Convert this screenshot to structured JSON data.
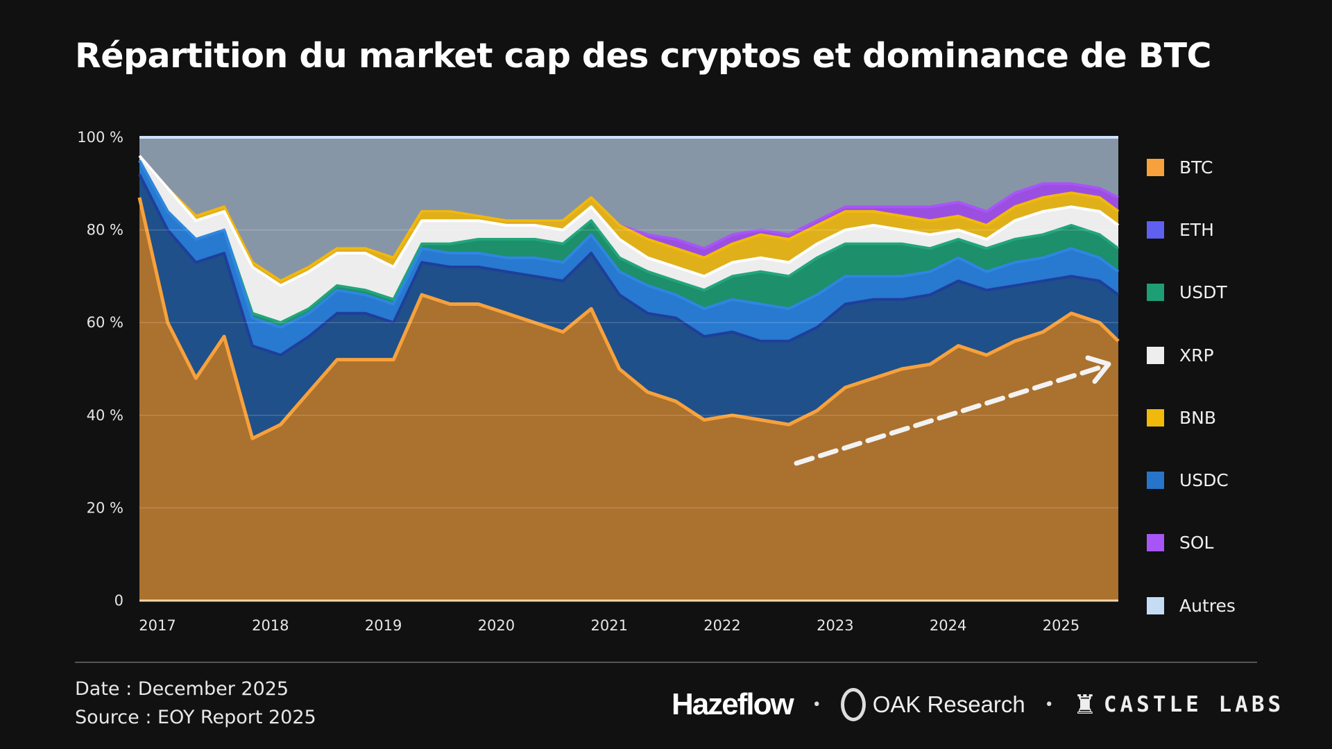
{
  "title": "Répartition du market cap des cryptos et dominance de BTC",
  "footer": {
    "date": "Date : December 2025",
    "source": "Source : EOY Report 2025",
    "logos": [
      "Hazeflow",
      "OAK Research",
      "CASTLE LABS"
    ]
  },
  "chart_data": {
    "type": "area",
    "stacked": true,
    "title": "",
    "xlabel": "",
    "ylabel": "",
    "ylim": [
      0,
      100
    ],
    "grid": true,
    "legend_position": "right",
    "y_tick_labels": [
      "0",
      "20 %",
      "40 %",
      "60 %",
      "80 %",
      "100 %"
    ],
    "x_tick_labels": [
      "2017",
      "2018",
      "2019",
      "2020",
      "2021",
      "2022",
      "2023",
      "2024",
      "2025"
    ],
    "x": [
      "2017-01",
      "2017-04",
      "2017-07",
      "2017-10",
      "2018-01",
      "2018-04",
      "2018-07",
      "2018-10",
      "2019-01",
      "2019-04",
      "2019-07",
      "2019-10",
      "2020-01",
      "2020-04",
      "2020-07",
      "2020-10",
      "2021-01",
      "2021-04",
      "2021-07",
      "2021-10",
      "2022-01",
      "2022-04",
      "2022-07",
      "2022-10",
      "2023-01",
      "2023-04",
      "2023-07",
      "2023-10",
      "2024-01",
      "2024-04",
      "2024-07",
      "2024-10",
      "2025-01",
      "2025-04",
      "2025-07",
      "2025-09"
    ],
    "series": [
      {
        "name": "BTC",
        "color": "#f7a13c",
        "values": [
          87,
          60,
          48,
          57,
          35,
          38,
          45,
          52,
          52,
          52,
          66,
          64,
          64,
          62,
          60,
          58,
          63,
          50,
          45,
          43,
          39,
          40,
          39,
          38,
          41,
          46,
          48,
          50,
          51,
          55,
          53,
          56,
          58,
          62,
          60,
          56
        ]
      },
      {
        "name": "ETH",
        "color": "#5f5ff0",
        "values": [
          5,
          20,
          25,
          18,
          20,
          15,
          12,
          10,
          10,
          8,
          7,
          8,
          8,
          9,
          10,
          11,
          12,
          16,
          17,
          18,
          18,
          18,
          17,
          18,
          18,
          18,
          17,
          15,
          15,
          14,
          14,
          12,
          11,
          8,
          9,
          10
        ]
      },
      {
        "name": "USDT",
        "color": "#1e9e75",
        "values": [
          0,
          0,
          0,
          0,
          1,
          1,
          1,
          1,
          1,
          1,
          1,
          2,
          3,
          4,
          4,
          4,
          3,
          3,
          3,
          3,
          4,
          5,
          7,
          7,
          8,
          7,
          7,
          7,
          5,
          4,
          5,
          5,
          5,
          5,
          5,
          5
        ]
      },
      {
        "name": "XRP",
        "color": "#eeeeee",
        "values": [
          1,
          5,
          4,
          4,
          10,
          8,
          8,
          7,
          8,
          7,
          5,
          5,
          4,
          3,
          3,
          3,
          3,
          4,
          3,
          3,
          3,
          3,
          3,
          3,
          3,
          3,
          4,
          3,
          3,
          2,
          2,
          4,
          5,
          4,
          5,
          5
        ]
      },
      {
        "name": "BNB",
        "color": "#f0b90b",
        "values": [
          0,
          0,
          1,
          1,
          1,
          1,
          1,
          1,
          1,
          2,
          2,
          2,
          1,
          1,
          1,
          2,
          2,
          3,
          4,
          4,
          4,
          4,
          5,
          5,
          4,
          4,
          3,
          3,
          3,
          3,
          3,
          3,
          3,
          3,
          3,
          3
        ]
      },
      {
        "name": "USDC",
        "color": "#2775ca",
        "values": [
          3,
          4,
          5,
          5,
          6,
          6,
          5,
          5,
          4,
          4,
          3,
          3,
          3,
          3,
          4,
          4,
          4,
          5,
          6,
          5,
          6,
          7,
          8,
          7,
          7,
          6,
          5,
          5,
          5,
          5,
          4,
          5,
          5,
          6,
          5,
          5
        ]
      },
      {
        "name": "SOL",
        "color": "#a855f7",
        "values": [
          0,
          0,
          0,
          0,
          0,
          0,
          0,
          0,
          0,
          0,
          0,
          0,
          0,
          0,
          0,
          0,
          0,
          0,
          1,
          2,
          2,
          2,
          1,
          1,
          1,
          1,
          1,
          2,
          3,
          3,
          3,
          3,
          3,
          2,
          2,
          3
        ]
      },
      {
        "name": "Autres",
        "color": "#c5dcf5",
        "values": [
          4,
          11,
          17,
          15,
          27,
          31,
          28,
          24,
          24,
          26,
          16,
          16,
          17,
          18,
          18,
          18,
          13,
          19,
          21,
          22,
          24,
          21,
          20,
          21,
          18,
          15,
          15,
          15,
          15,
          14,
          16,
          12,
          10,
          10,
          11,
          13
        ]
      }
    ],
    "annotation": {
      "type": "dashed-arrow",
      "color": "#ffffff",
      "meaning": "trend up"
    }
  }
}
